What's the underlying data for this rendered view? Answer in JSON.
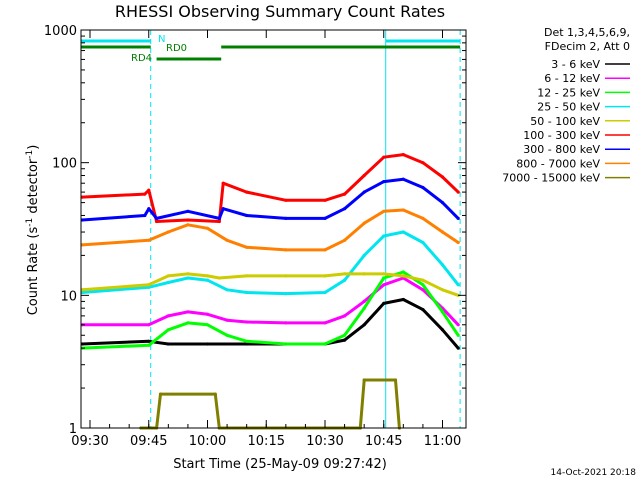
{
  "chart_data": {
    "type": "line",
    "title": "RHESSI Observing Summary Count Rates",
    "xlabel": "Start Time (25-May-09 09:27:42)",
    "ylabel_main": "Count Rate (s",
    "ylabel_sup1": "-1",
    "ylabel_mid": " detector",
    "ylabel_sup2": "-1",
    "ylabel_end": ")",
    "yscale": "log",
    "xlim": [
      "09:27:42",
      "11:06:00"
    ],
    "ylim": [
      1,
      1000
    ],
    "x_ticks": [
      "09:30",
      "09:45",
      "10:00",
      "10:15",
      "10:30",
      "10:45",
      "11:00"
    ],
    "y_ticks": [
      "1",
      "10",
      "100",
      "1000"
    ],
    "legend_header": [
      "Det 1,3,4,5,6,9,",
      "FDecim 2, Att 0"
    ],
    "footer_date": "14-Oct-2021 20:18",
    "flags": [
      {
        "label": "N",
        "color": "#00e5ee",
        "segments": [
          [
            "09:27:42",
            "09:45:30"
          ],
          [
            "10:45:30",
            "11:04:30"
          ]
        ]
      },
      {
        "label": "RD0",
        "color": "#008000",
        "segments": [
          [
            "09:27:42",
            "09:45:30"
          ],
          [
            "10:03:30",
            "11:04:30"
          ]
        ]
      },
      {
        "label": "RD4",
        "color": "#008000",
        "segments": [
          [
            "09:47:00",
            "10:03:30"
          ]
        ]
      }
    ],
    "night_markers": [
      "09:27:42",
      "09:45:30",
      "11:04:30"
    ],
    "saa_markers": [
      "10:45:30"
    ],
    "series": [
      {
        "name": "3 - 6 keV",
        "color": "#000000",
        "x": [
          "09:28",
          "09:45",
          "09:50",
          "10:00",
          "10:10",
          "10:20",
          "10:30",
          "10:35",
          "10:40",
          "10:45",
          "10:50",
          "10:55",
          "11:00",
          "11:04"
        ],
        "y": [
          4.3,
          4.5,
          4.3,
          4.3,
          4.3,
          4.3,
          4.3,
          4.6,
          6.0,
          8.7,
          9.3,
          7.8,
          5.5,
          4.0
        ]
      },
      {
        "name": "6 - 12 keV",
        "color": "#ff00ff",
        "x": [
          "09:28",
          "09:45",
          "09:50",
          "09:55",
          "10:00",
          "10:05",
          "10:10",
          "10:20",
          "10:30",
          "10:35",
          "10:40",
          "10:45",
          "10:50",
          "10:55",
          "11:00",
          "11:04"
        ],
        "y": [
          6.0,
          6.0,
          7.0,
          7.5,
          7.2,
          6.5,
          6.3,
          6.2,
          6.2,
          7.0,
          9.0,
          12.0,
          13.5,
          11.0,
          8.0,
          6.0
        ]
      },
      {
        "name": "12 - 25 keV",
        "color": "#00ff00",
        "x": [
          "09:28",
          "09:45",
          "09:50",
          "09:55",
          "10:00",
          "10:05",
          "10:10",
          "10:20",
          "10:30",
          "10:35",
          "10:40",
          "10:45",
          "10:50",
          "10:55",
          "11:00",
          "11:04"
        ],
        "y": [
          4.0,
          4.2,
          5.5,
          6.2,
          6.0,
          5.0,
          4.5,
          4.3,
          4.3,
          5.0,
          8.0,
          13.5,
          15.0,
          12.0,
          7.5,
          5.0
        ]
      },
      {
        "name": "25 - 50 keV",
        "color": "#00e5ee",
        "x": [
          "09:28",
          "09:45",
          "09:50",
          "09:55",
          "10:00",
          "10:05",
          "10:10",
          "10:20",
          "10:30",
          "10:35",
          "10:40",
          "10:45",
          "10:50",
          "10:55",
          "11:00",
          "11:04"
        ],
        "y": [
          10.5,
          11.5,
          12.5,
          13.5,
          13.0,
          11.0,
          10.5,
          10.3,
          10.5,
          13.0,
          20.0,
          28.0,
          30.0,
          25.0,
          17.0,
          12.0
        ]
      },
      {
        "name": "50 - 100 keV",
        "color": "#cccc00",
        "x": [
          "09:28",
          "09:45",
          "09:50",
          "09:55",
          "10:00",
          "10:03",
          "10:10",
          "10:20",
          "10:30",
          "10:35",
          "10:40",
          "10:45",
          "10:50",
          "10:55",
          "11:00",
          "11:04"
        ],
        "y": [
          11.0,
          12.0,
          14.0,
          14.5,
          14.0,
          13.5,
          14.0,
          14.0,
          14.0,
          14.5,
          14.5,
          14.5,
          14.0,
          13.0,
          11.0,
          10.0
        ]
      },
      {
        "name": "100 - 300 keV",
        "color": "#ff0000",
        "x": [
          "09:28",
          "09:44",
          "09:45",
          "09:47",
          "09:55",
          "10:03",
          "10:04",
          "10:10",
          "10:20",
          "10:30",
          "10:35",
          "10:40",
          "10:45",
          "10:50",
          "10:55",
          "11:00",
          "11:04"
        ],
        "y": [
          55,
          58,
          62,
          36,
          37,
          36,
          70,
          60,
          52,
          52,
          58,
          80,
          110,
          115,
          100,
          78,
          60
        ]
      },
      {
        "name": "300 - 800 keV",
        "color": "#0000ff",
        "x": [
          "09:28",
          "09:44",
          "09:45",
          "09:47",
          "09:55",
          "10:03",
          "10:04",
          "10:10",
          "10:20",
          "10:30",
          "10:35",
          "10:40",
          "10:45",
          "10:50",
          "10:55",
          "11:00",
          "11:04"
        ],
        "y": [
          37,
          40,
          45,
          38,
          43,
          38,
          45,
          40,
          38,
          38,
          45,
          60,
          72,
          75,
          65,
          50,
          38
        ]
      },
      {
        "name": "800 - 7000 keV",
        "color": "#ff8000",
        "x": [
          "09:28",
          "09:45",
          "09:50",
          "09:55",
          "10:00",
          "10:05",
          "10:10",
          "10:20",
          "10:30",
          "10:35",
          "10:40",
          "10:45",
          "10:50",
          "10:55",
          "11:00",
          "11:04"
        ],
        "y": [
          24,
          26,
          30,
          34,
          32,
          26,
          23,
          22,
          22,
          26,
          35,
          43,
          44,
          38,
          30,
          25
        ]
      },
      {
        "name": "7000 - 15000 keV",
        "color": "#808000",
        "x": [
          "09:43",
          "09:47",
          "09:48",
          "10:02",
          "10:03",
          "10:39",
          "10:40",
          "10:48",
          "10:49"
        ],
        "y": [
          1.0,
          1.0,
          1.8,
          1.8,
          1.0,
          1.0,
          2.3,
          2.3,
          1.0
        ]
      }
    ]
  }
}
